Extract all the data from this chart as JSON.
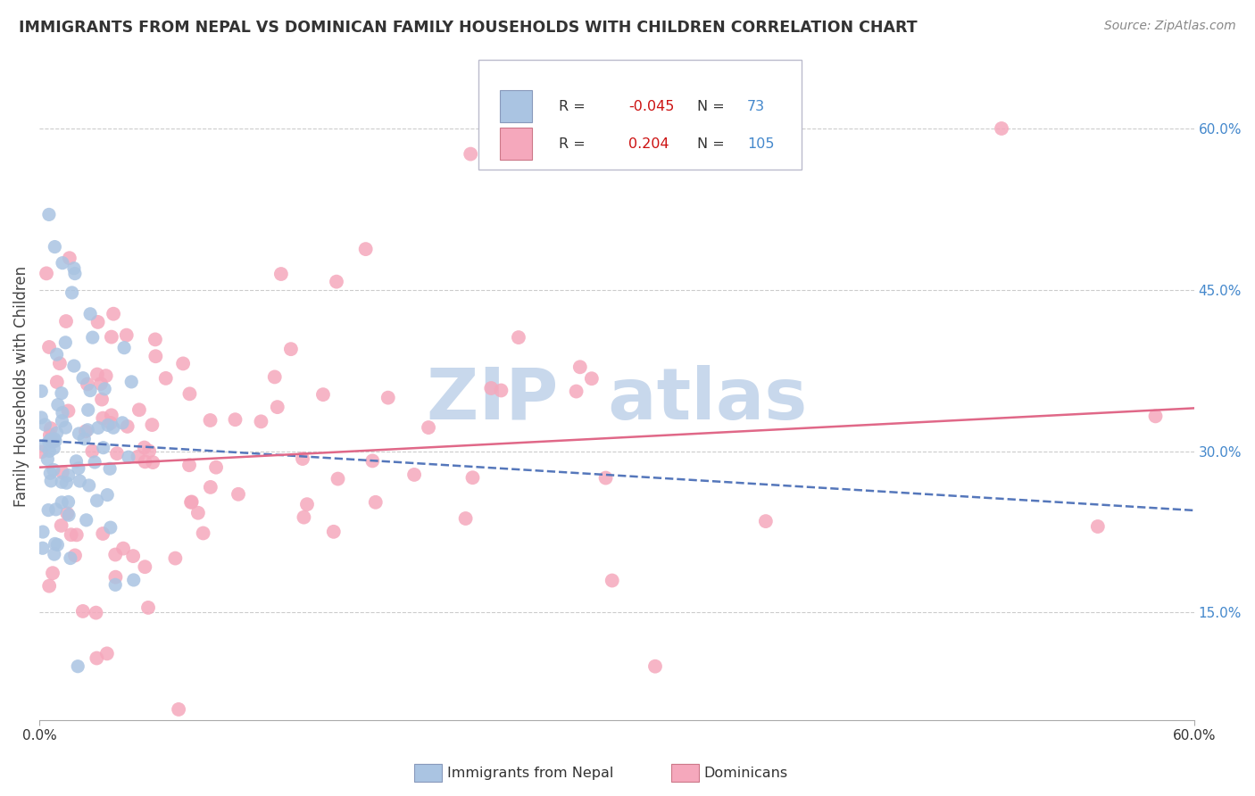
{
  "title": "IMMIGRANTS FROM NEPAL VS DOMINICAN FAMILY HOUSEHOLDS WITH CHILDREN CORRELATION CHART",
  "source": "Source: ZipAtlas.com",
  "ylabel": "Family Households with Children",
  "x_min": 0.0,
  "x_max": 0.6,
  "y_min": 0.05,
  "y_max": 0.67,
  "y_ticks": [
    0.15,
    0.3,
    0.45,
    0.6
  ],
  "y_tick_labels": [
    "15.0%",
    "30.0%",
    "45.0%",
    "60.0%"
  ],
  "x_ticks": [
    0.0,
    0.6
  ],
  "x_tick_labels": [
    "0.0%",
    "60.0%"
  ],
  "nepal_R": -0.045,
  "nepal_N": 73,
  "dominican_R": 0.204,
  "dominican_N": 105,
  "nepal_color": "#aac4e2",
  "dominican_color": "#f5a8bc",
  "nepal_line_color": "#5577bb",
  "dominican_line_color": "#e06888",
  "watermark_color": "#c8d8ec",
  "legend_labels": [
    "Immigrants from Nepal",
    "Dominicans"
  ],
  "background_color": "#ffffff",
  "grid_color": "#cccccc",
  "nepal_seed": 42,
  "dominican_seed": 77
}
